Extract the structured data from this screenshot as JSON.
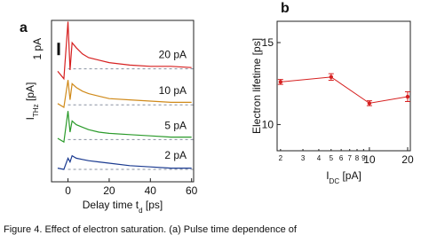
{
  "caption": "Figure 4. Effect of electron saturation. (a) Pulse time dependence of",
  "chart_data": [
    {
      "type": "line",
      "panel_label": "a",
      "xlabel": [
        "Delay time ",
        "t",
        "d",
        " [ps]"
      ],
      "ylabel": [
        "I",
        "THz",
        " [pA]"
      ],
      "scalebar": {
        "value": 1,
        "label": "1 pA"
      },
      "x": [
        -5,
        -2,
        0,
        1,
        2,
        4,
        7,
        10,
        15,
        20,
        30,
        40,
        50,
        60
      ],
      "xlim": [
        -8,
        61
      ],
      "xticks": [
        0,
        20,
        40,
        60
      ],
      "ylim": [
        -1,
        12
      ],
      "series": [
        {
          "name": "20 pA",
          "color": "#d62020",
          "baseline": 8.1,
          "values": [
            7.9,
            7.3,
            11.9,
            8.0,
            10.2,
            9.8,
            9.3,
            9.0,
            8.8,
            8.6,
            8.4,
            8.3,
            8.3,
            8.2
          ]
        },
        {
          "name": "10 pA",
          "color": "#d08a1a",
          "baseline": 5.2,
          "values": [
            5.3,
            5.0,
            7.2,
            5.6,
            6.9,
            6.6,
            6.3,
            6.1,
            5.9,
            5.7,
            5.6,
            5.5,
            5.4,
            5.4
          ]
        },
        {
          "name": "5 pA",
          "color": "#2a9a2a",
          "baseline": 2.4,
          "values": [
            2.5,
            2.2,
            4.7,
            3.0,
            3.9,
            3.6,
            3.4,
            3.2,
            3.0,
            2.9,
            2.8,
            2.7,
            2.6,
            2.6
          ]
        },
        {
          "name": "2 pA",
          "color": "#1a3a90",
          "baseline": 0,
          "values": [
            0.1,
            0,
            0.9,
            0.6,
            1.1,
            0.9,
            0.8,
            0.7,
            0.6,
            0.5,
            0.3,
            0.2,
            0.1,
            0.1
          ]
        }
      ]
    },
    {
      "type": "errorline",
      "panel_label": "b",
      "xlabel": [
        "I",
        "DC",
        " [pA]"
      ],
      "ylabel": "Electron lifetime [ps]",
      "log_x": true,
      "color": "#d62020",
      "x": [
        2,
        5,
        10,
        20
      ],
      "values": [
        12.6,
        12.9,
        11.3,
        11.7
      ],
      "errors": [
        0.15,
        0.2,
        0.15,
        0.3
      ],
      "xlim": [
        1.88,
        21
      ],
      "xticks": [
        2,
        3,
        4,
        5,
        6,
        7,
        8,
        9,
        10,
        20
      ],
      "ylim": [
        8.4,
        16.3
      ],
      "yticks": [
        10,
        15
      ]
    }
  ]
}
